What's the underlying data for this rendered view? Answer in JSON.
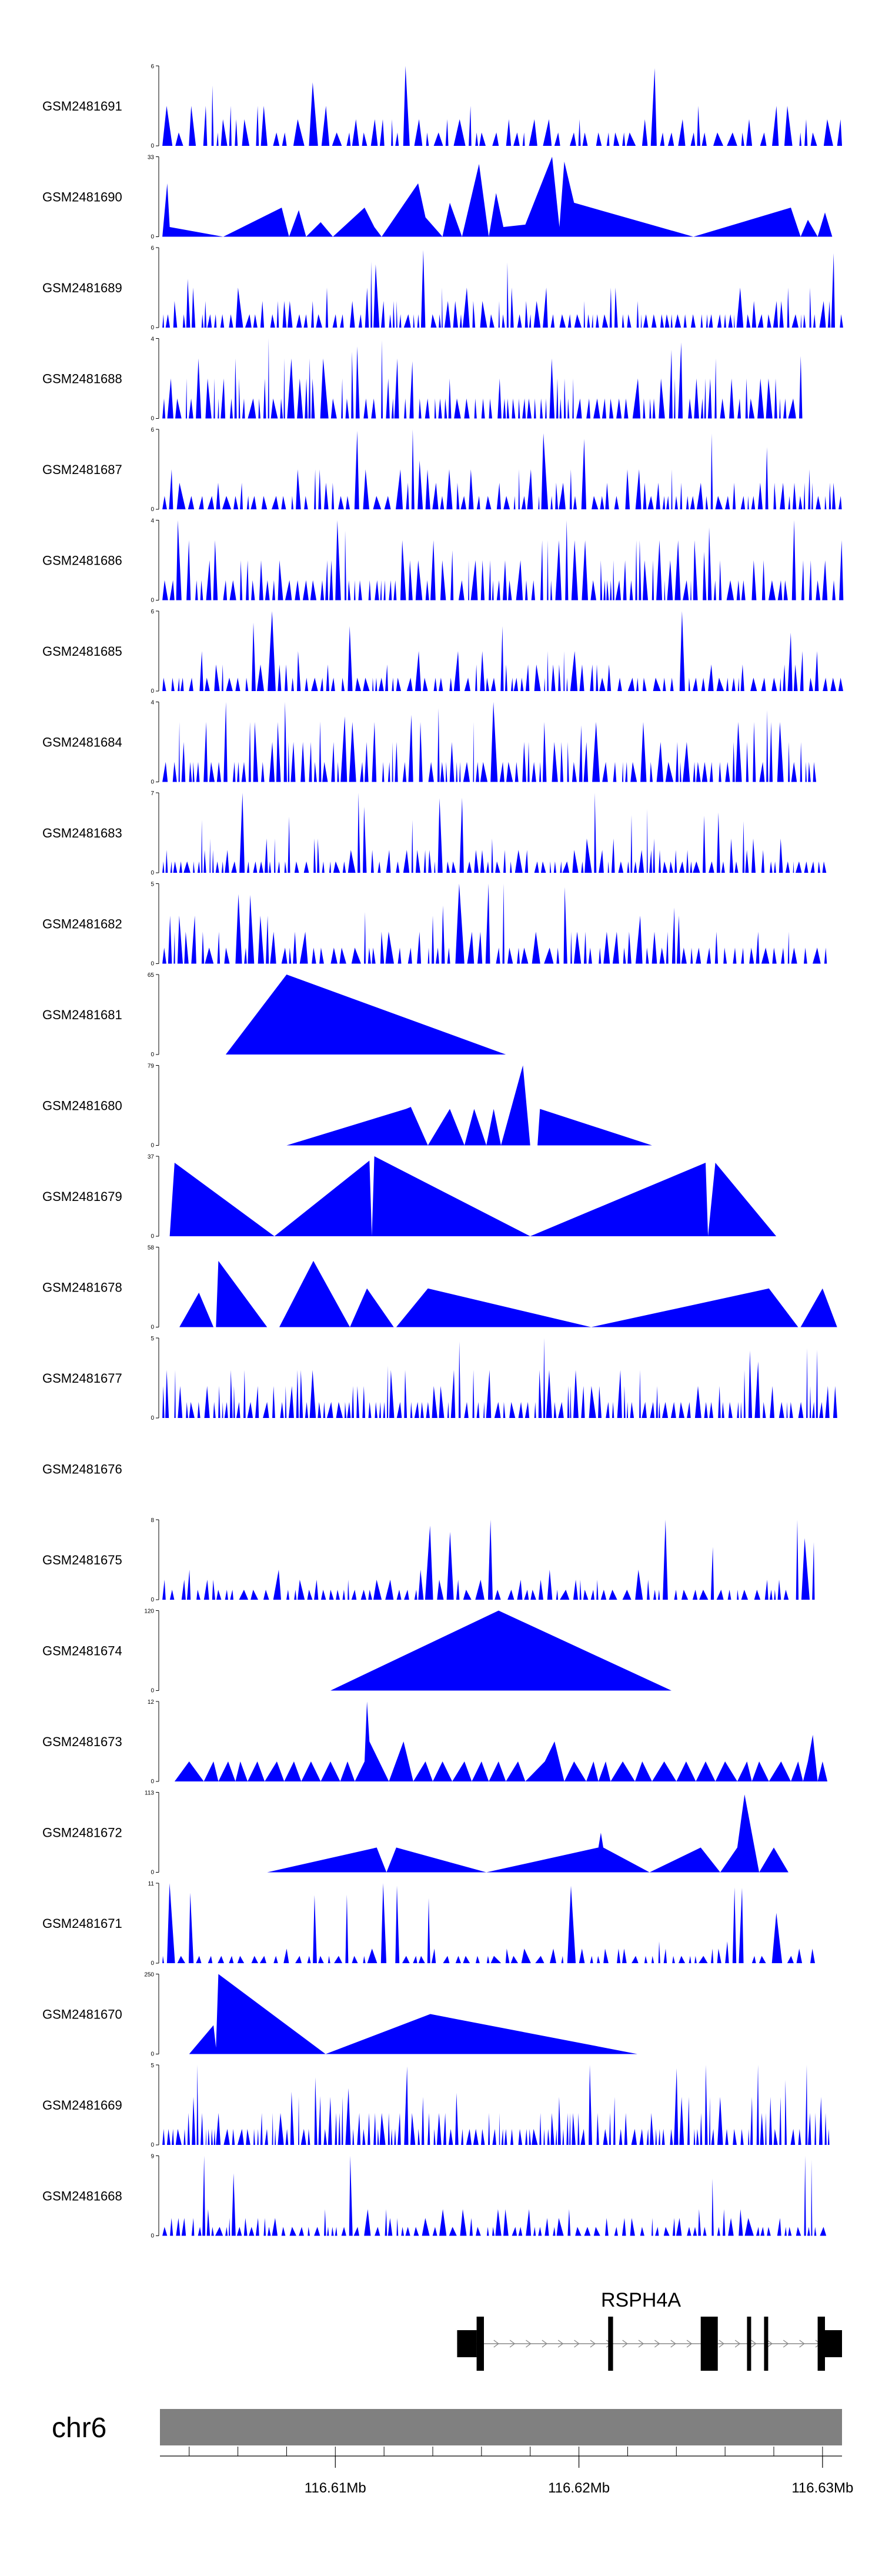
{
  "chart_data": {
    "type": "area",
    "chromosome": "chr6",
    "x_unit": "Mb",
    "xlim": [
      116.6028,
      116.6308
    ],
    "x_ticks": [
      {
        "value": 116.61,
        "label": "116.61Mb"
      },
      {
        "value": 116.62,
        "label": "116.62Mb"
      },
      {
        "value": 116.63,
        "label": "116.63Mb"
      }
    ],
    "track_color": "#0000ff",
    "tracks": [
      {
        "name": "GSM2481691",
        "ymax": 6,
        "ymin_label": "0",
        "ymax_label": "6",
        "shape": "dense",
        "density": 70,
        "seed": 91
      },
      {
        "name": "GSM2481690",
        "ymax": 33,
        "ymin_label": "0",
        "ymax_label": "33",
        "shape": "points",
        "points": [
          [
            116.6028,
            0
          ],
          [
            116.6029,
            0
          ],
          [
            116.6031,
            22
          ],
          [
            116.6032,
            4
          ],
          [
            116.6054,
            0
          ],
          [
            116.6078,
            12
          ],
          [
            116.6081,
            0
          ],
          [
            116.6085,
            11
          ],
          [
            116.6088,
            0
          ],
          [
            116.6094,
            6
          ],
          [
            116.6099,
            0
          ],
          [
            116.6112,
            12
          ],
          [
            116.6116,
            4
          ],
          [
            116.6119,
            0
          ],
          [
            116.6134,
            22
          ],
          [
            116.6137,
            8
          ],
          [
            116.6144,
            0
          ],
          [
            116.6147,
            14
          ],
          [
            116.6152,
            0
          ],
          [
            116.6159,
            30
          ],
          [
            116.6163,
            0
          ],
          [
            116.6166,
            18
          ],
          [
            116.6169,
            4
          ],
          [
            116.6178,
            5
          ],
          [
            116.6189,
            33
          ],
          [
            116.6192,
            4
          ],
          [
            116.6194,
            31
          ],
          [
            116.6198,
            14
          ],
          [
            116.6247,
            0
          ],
          [
            116.6287,
            12
          ],
          [
            116.6291,
            0
          ],
          [
            116.6294,
            7
          ],
          [
            116.6298,
            0
          ],
          [
            116.6301,
            10
          ],
          [
            116.6304,
            0
          ]
        ]
      },
      {
        "name": "GSM2481689",
        "ymax": 6,
        "ymin_label": "0",
        "ymax_label": "6",
        "shape": "dense",
        "density": 110,
        "seed": 89
      },
      {
        "name": "GSM2481688",
        "ymax": 4,
        "ymin_label": "0",
        "ymax_label": "4",
        "shape": "dense",
        "density": 100,
        "seed": 88
      },
      {
        "name": "GSM2481687",
        "ymax": 6,
        "ymin_label": "0",
        "ymax_label": "6",
        "shape": "dense",
        "density": 95,
        "seed": 87
      },
      {
        "name": "GSM2481686",
        "ymax": 4,
        "ymin_label": "0",
        "ymax_label": "4",
        "shape": "dense",
        "density": 105,
        "seed": 86
      },
      {
        "name": "GSM2481685",
        "ymax": 6,
        "ymin_label": "0",
        "ymax_label": "6",
        "shape": "dense",
        "density": 100,
        "seed": 85
      },
      {
        "name": "GSM2481684",
        "ymax": 4,
        "ymin_label": "0",
        "ymax_label": "4",
        "shape": "dense",
        "density": 100,
        "seed": 84
      },
      {
        "name": "GSM2481683",
        "ymax": 7,
        "ymin_label": "0",
        "ymax_label": "7",
        "shape": "dense",
        "density": 110,
        "seed": 83
      },
      {
        "name": "GSM2481682",
        "ymax": 5,
        "ymin_label": "0",
        "ymax_label": "5",
        "shape": "dense",
        "density": 85,
        "seed": 82
      },
      {
        "name": "GSM2481681",
        "ymax": 65,
        "ymin_label": "0",
        "ymax_label": "65",
        "shape": "points",
        "points": [
          [
            116.6055,
            0
          ],
          [
            116.608,
            65
          ],
          [
            116.617,
            0
          ]
        ]
      },
      {
        "name": "GSM2481680",
        "ymax": 79,
        "ymin_label": "0",
        "ymax_label": "79",
        "shape": "points",
        "points": [
          [
            116.608,
            0
          ],
          [
            116.6129,
            36
          ],
          [
            116.6131,
            38
          ],
          [
            116.6138,
            0
          ],
          [
            116.6147,
            36
          ],
          [
            116.6153,
            0
          ],
          [
            116.6157,
            36
          ],
          [
            116.6162,
            0
          ],
          [
            116.6165,
            36
          ],
          [
            116.6168,
            0
          ],
          [
            116.6177,
            79
          ],
          [
            116.618,
            0
          ],
          [
            116.6183,
            0
          ],
          [
            116.6184,
            36
          ],
          [
            116.623,
            0
          ]
        ]
      },
      {
        "name": "GSM2481679",
        "ymax": 37,
        "ymin_label": "0",
        "ymax_label": "37",
        "shape": "points",
        "points": [
          [
            116.6032,
            0
          ],
          [
            116.6034,
            34
          ],
          [
            116.6075,
            0
          ],
          [
            116.6114,
            35
          ],
          [
            116.6115,
            0
          ],
          [
            116.6116,
            37
          ],
          [
            116.618,
            0
          ],
          [
            116.6252,
            34
          ],
          [
            116.6253,
            0
          ],
          [
            116.6256,
            34
          ],
          [
            116.6281,
            0
          ]
        ]
      },
      {
        "name": "GSM2481678",
        "ymax": 58,
        "ymin_label": "0",
        "ymax_label": "58",
        "shape": "points",
        "points": [
          [
            116.6036,
            0
          ],
          [
            116.6044,
            25
          ],
          [
            116.605,
            0
          ],
          [
            116.6051,
            0
          ],
          [
            116.6052,
            48
          ],
          [
            116.6072,
            0
          ],
          [
            116.6077,
            0
          ],
          [
            116.6091,
            48
          ],
          [
            116.6106,
            0
          ],
          [
            116.6113,
            28
          ],
          [
            116.6124,
            0
          ],
          [
            116.6125,
            0
          ],
          [
            116.6138,
            28
          ],
          [
            116.6205,
            0
          ],
          [
            116.6278,
            28
          ],
          [
            116.629,
            0
          ],
          [
            116.6291,
            0
          ],
          [
            116.63,
            28
          ],
          [
            116.6306,
            0
          ]
        ]
      },
      {
        "name": "GSM2481677",
        "ymax": 5,
        "ymin_label": "0",
        "ymax_label": "5",
        "shape": "dense",
        "density": 115,
        "seed": 77
      },
      {
        "name": "GSM2481676",
        "ymax": null,
        "shape": "empty"
      },
      {
        "name": "GSM2481675",
        "ymax": 8,
        "ymin_label": "0",
        "ymax_label": "8",
        "shape": "dense",
        "density": 80,
        "seed": 75
      },
      {
        "name": "GSM2481674",
        "ymax": 120,
        "ymin_label": "0",
        "ymax_label": "120",
        "shape": "points",
        "points": [
          [
            116.6098,
            0
          ],
          [
            116.6167,
            120
          ],
          [
            116.6238,
            0
          ]
        ]
      },
      {
        "name": "GSM2481673",
        "ymax": 12,
        "ymin_label": "0",
        "ymax_label": "12",
        "shape": "points",
        "points": [
          [
            116.6034,
            0
          ],
          [
            116.604,
            3
          ],
          [
            116.6046,
            0
          ],
          [
            116.605,
            3
          ],
          [
            116.6052,
            0
          ],
          [
            116.6056,
            3
          ],
          [
            116.6059,
            0
          ],
          [
            116.6061,
            3
          ],
          [
            116.6064,
            0
          ],
          [
            116.6068,
            3
          ],
          [
            116.6071,
            0
          ],
          [
            116.6076,
            3
          ],
          [
            116.6079,
            0
          ],
          [
            116.6083,
            3
          ],
          [
            116.6086,
            0
          ],
          [
            116.609,
            3
          ],
          [
            116.6094,
            0
          ],
          [
            116.6098,
            3
          ],
          [
            116.6102,
            0
          ],
          [
            116.6105,
            3
          ],
          [
            116.6108,
            0
          ],
          [
            116.6112,
            3
          ],
          [
            116.6113,
            12
          ],
          [
            116.6114,
            6
          ],
          [
            116.6122,
            0
          ],
          [
            116.6128,
            6
          ],
          [
            116.6132,
            0
          ],
          [
            116.6137,
            3
          ],
          [
            116.614,
            0
          ],
          [
            116.6144,
            3
          ],
          [
            116.6148,
            0
          ],
          [
            116.6153,
            3
          ],
          [
            116.6156,
            0
          ],
          [
            116.616,
            3
          ],
          [
            116.6163,
            0
          ],
          [
            116.6167,
            3
          ],
          [
            116.617,
            0
          ],
          [
            116.6175,
            3
          ],
          [
            116.6178,
            0
          ],
          [
            116.6186,
            3
          ],
          [
            116.619,
            6
          ],
          [
            116.6194,
            0
          ],
          [
            116.6198,
            3
          ],
          [
            116.6203,
            0
          ],
          [
            116.6206,
            3
          ],
          [
            116.6208,
            0
          ],
          [
            116.6211,
            3
          ],
          [
            116.6213,
            0
          ],
          [
            116.6218,
            3
          ],
          [
            116.6223,
            0
          ],
          [
            116.6226,
            3
          ],
          [
            116.623,
            0
          ],
          [
            116.6235,
            3
          ],
          [
            116.624,
            0
          ],
          [
            116.6244,
            3
          ],
          [
            116.6248,
            0
          ],
          [
            116.6252,
            3
          ],
          [
            116.6256,
            0
          ],
          [
            116.626,
            3
          ],
          [
            116.6265,
            0
          ],
          [
            116.6269,
            3
          ],
          [
            116.6271,
            0
          ],
          [
            116.6274,
            3
          ],
          [
            116.6278,
            0
          ],
          [
            116.6283,
            3
          ],
          [
            116.6287,
            0
          ],
          [
            116.629,
            3
          ],
          [
            116.6292,
            0
          ],
          [
            116.6294,
            3
          ],
          [
            116.6296,
            7
          ],
          [
            116.6298,
            0
          ],
          [
            116.63,
            3
          ],
          [
            116.6302,
            0
          ]
        ]
      },
      {
        "name": "GSM2481672",
        "ymax": 113,
        "ymin_label": "0",
        "ymax_label": "113",
        "shape": "points",
        "points": [
          [
            116.6072,
            0
          ],
          [
            116.6117,
            35
          ],
          [
            116.6121,
            0
          ],
          [
            116.6125,
            35
          ],
          [
            116.6162,
            0
          ],
          [
            116.6208,
            35
          ],
          [
            116.6209,
            56
          ],
          [
            116.621,
            35
          ],
          [
            116.6229,
            0
          ],
          [
            116.625,
            35
          ],
          [
            116.6258,
            0
          ],
          [
            116.6265,
            35
          ],
          [
            116.6268,
            110
          ],
          [
            116.6274,
            0
          ],
          [
            116.628,
            35
          ],
          [
            116.6286,
            0
          ]
        ]
      },
      {
        "name": "GSM2481671",
        "ymax": 11,
        "ymin_label": "0",
        "ymax_label": "11",
        "shape": "dense",
        "density": 70,
        "seed": 71
      },
      {
        "name": "GSM2481670",
        "ymax": 250,
        "ymin_label": "0",
        "ymax_label": "250",
        "shape": "points",
        "points": [
          [
            116.604,
            0
          ],
          [
            116.605,
            90
          ],
          [
            116.6051,
            20
          ],
          [
            116.6052,
            250
          ],
          [
            116.6096,
            0
          ],
          [
            116.6139,
            125
          ],
          [
            116.6224,
            0
          ]
        ]
      },
      {
        "name": "GSM2481669",
        "ymax": 5,
        "ymin_label": "0",
        "ymax_label": "5",
        "shape": "dense",
        "density": 130,
        "seed": 69
      },
      {
        "name": "GSM2481668",
        "ymax": 9,
        "ymin_label": "0",
        "ymax_label": "9",
        "shape": "dense",
        "density": 95,
        "seed": 68
      }
    ],
    "gene": {
      "name": "RSPH4A",
      "strand": "+",
      "start": 116.615,
      "end": 116.6308,
      "exons": [
        [
          116.615,
          116.6158,
          "utr"
        ],
        [
          116.6158,
          116.6161,
          "cds"
        ],
        [
          116.6212,
          116.6214,
          "cds"
        ],
        [
          116.625,
          116.6257,
          "cds"
        ],
        [
          116.6269,
          116.627,
          "cds"
        ],
        [
          116.6276,
          116.6277,
          "cds"
        ],
        [
          116.6298,
          116.6301,
          "cds"
        ],
        [
          116.6301,
          116.6308,
          "utr"
        ]
      ]
    }
  }
}
